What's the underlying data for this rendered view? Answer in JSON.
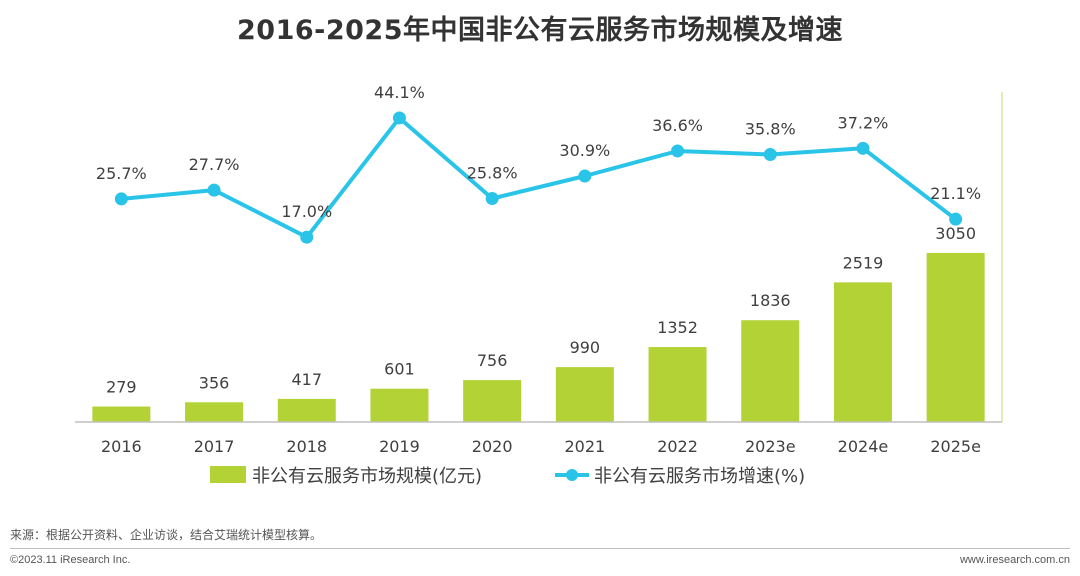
{
  "title": "2016-2025年中国非公有云服务市场规模及增速",
  "chart_data": {
    "type": "bar+line",
    "categories": [
      "2016",
      "2017",
      "2018",
      "2019",
      "2020",
      "2021",
      "2022",
      "2023e",
      "2024e",
      "2025e"
    ],
    "series": [
      {
        "name": "非公有云服务市场规模(亿元)",
        "type": "bar",
        "color": "#b2d235",
        "values": [
          279,
          356,
          417,
          601,
          756,
          990,
          1352,
          1836,
          2519,
          3050
        ],
        "labels": [
          "279",
          "356",
          "417",
          "601",
          "756",
          "990",
          "1352",
          "1836",
          "2519",
          "3050"
        ]
      },
      {
        "name": "非公有云服务市场增速(%)",
        "type": "line",
        "color": "#29c4e8",
        "values": [
          25.7,
          27.7,
          17.0,
          44.1,
          25.8,
          30.9,
          36.6,
          35.8,
          37.2,
          21.1
        ],
        "labels": [
          "25.7%",
          "27.7%",
          "17.0%",
          "44.1%",
          "25.8%",
          "30.9%",
          "36.6%",
          "35.8%",
          "37.2%",
          "21.1%"
        ]
      }
    ],
    "bar_range": [
      0,
      3500
    ],
    "line_range": [
      0,
      50
    ],
    "legend": [
      "非公有云服务市场规模(亿元)",
      "非公有云服务市场增速(%)"
    ]
  },
  "source": "来源：根据公开资料、企业访谈，结合艾瑞统计模型核算。",
  "copyright": "©2023.11 iResearch Inc.",
  "website": "www.iresearch.com.cn"
}
